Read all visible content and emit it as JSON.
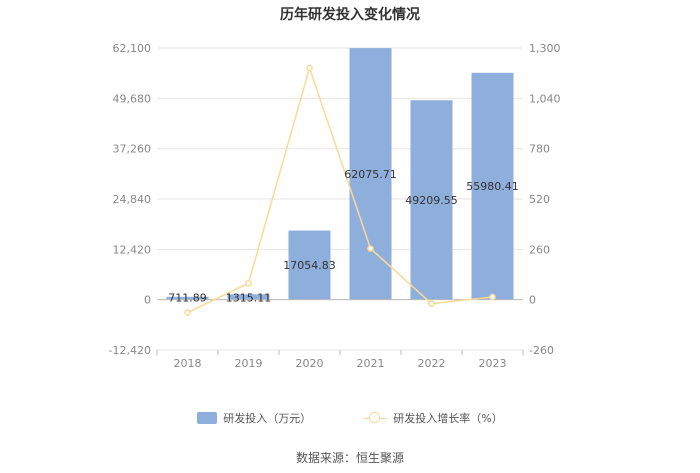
{
  "chart_data": {
    "type": "bar+line",
    "title": "历年研发投入变化情况",
    "categories": [
      "2018",
      "2019",
      "2020",
      "2021",
      "2022",
      "2023"
    ],
    "series": [
      {
        "name": "研发投入（万元）",
        "type": "bar",
        "axis": "left",
        "values": [
          711.89,
          1315.11,
          17054.83,
          62075.71,
          49209.55,
          55980.41
        ],
        "labels": [
          "711.89",
          "1315.11",
          "17054.83",
          "62075.71",
          "49209.55",
          "55980.41"
        ]
      },
      {
        "name": "研发投入增长率（%）",
        "type": "line",
        "axis": "right",
        "values": [
          -67,
          85,
          1197,
          264,
          -21,
          14
        ]
      }
    ],
    "y_left": {
      "ticks": [
        "62,100",
        "49,680",
        "37,260",
        "24,840",
        "12,420",
        "0",
        "-12,420"
      ],
      "range": [
        -12420,
        62100
      ]
    },
    "y_right": {
      "ticks": [
        "1,300",
        "1,040",
        "780",
        "520",
        "260",
        "0",
        "-260"
      ],
      "range": [
        -260,
        1300
      ]
    },
    "legend_position": "bottom",
    "grid": true,
    "colors": {
      "bar": "#8eaedc",
      "line": "#fbd997",
      "grid": "#e6e6e6",
      "axis_text": "#888888",
      "label": "#333333"
    }
  },
  "source": "数据来源：恒生聚源"
}
